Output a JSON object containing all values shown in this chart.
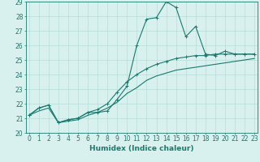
{
  "title": "",
  "xlabel": "Humidex (Indice chaleur)",
  "x_values": [
    0,
    1,
    2,
    3,
    4,
    5,
    6,
    7,
    8,
    9,
    10,
    11,
    12,
    13,
    14,
    15,
    16,
    17,
    18,
    19,
    20,
    21,
    22,
    23
  ],
  "line1_y": [
    21.2,
    21.7,
    21.9,
    20.7,
    20.9,
    21.0,
    21.4,
    21.4,
    21.5,
    22.3,
    23.2,
    26.0,
    27.8,
    27.9,
    29.0,
    28.6,
    26.6,
    27.3,
    25.4,
    25.3,
    25.6,
    25.4,
    25.4,
    25.4
  ],
  "line2_y": [
    21.2,
    21.7,
    21.9,
    20.7,
    20.9,
    21.0,
    21.4,
    21.6,
    22.0,
    22.8,
    23.5,
    24.0,
    24.4,
    24.7,
    24.9,
    25.1,
    25.2,
    25.3,
    25.3,
    25.4,
    25.4,
    25.4,
    25.4,
    25.4
  ],
  "line3_y": [
    21.2,
    21.5,
    21.7,
    20.7,
    20.8,
    20.9,
    21.2,
    21.4,
    21.7,
    22.1,
    22.7,
    23.1,
    23.6,
    23.9,
    24.1,
    24.3,
    24.4,
    24.5,
    24.6,
    24.7,
    24.8,
    24.9,
    25.0,
    25.1
  ],
  "line_color": "#1a7a6e",
  "bg_color": "#d8f0ee",
  "grid_color": "#b8dcd8",
  "ylim": [
    20,
    29
  ],
  "xlim": [
    -0.3,
    23.3
  ],
  "yticks": [
    20,
    21,
    22,
    23,
    24,
    25,
    26,
    27,
    28,
    29
  ],
  "xticks": [
    0,
    1,
    2,
    3,
    4,
    5,
    6,
    7,
    8,
    9,
    10,
    11,
    12,
    13,
    14,
    15,
    16,
    17,
    18,
    19,
    20,
    21,
    22,
    23
  ],
  "tick_fontsize": 5.5,
  "xlabel_fontsize": 6.5
}
